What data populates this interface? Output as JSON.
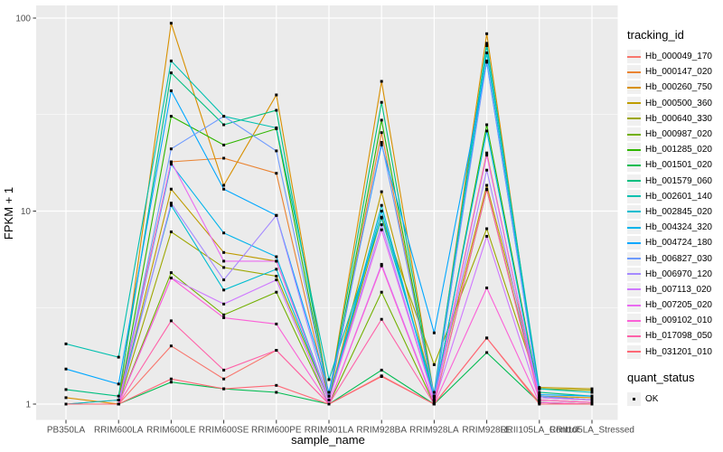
{
  "figure": {
    "xlabel": "sample_name",
    "ylabel": "FPKM + 1"
  },
  "colors": {
    "panel_bg": "#ebebeb",
    "grid": "#ffffff",
    "tick": "#333333",
    "tick_label": "#4d4d4d",
    "point": "#000000",
    "legend_key_bg": "#f0f0f0"
  },
  "chart_data": {
    "type": "line",
    "title": "",
    "xlabel": "sample_name",
    "ylabel": "FPKM + 1",
    "y_scale": "log10",
    "y_ticks": [
      1,
      10,
      100
    ],
    "y_tick_labels": [
      "1",
      "10",
      "100"
    ],
    "y_minor_ticks": [
      3.1623,
      31.623
    ],
    "ylim": [
      0.85,
      117
    ],
    "grid": true,
    "legend_position": "right",
    "legend_title": "tracking_id",
    "quant_legend": {
      "title": "quant_status",
      "items": [
        {
          "label": "OK",
          "marker": "black-square"
        }
      ]
    },
    "point_marker": {
      "shape": "square",
      "color": "#000000"
    },
    "categories": [
      "PB350LA",
      "RRIM600LA",
      "RRIM600LE",
      "RRIM600SE",
      "RRIM600PE",
      "RRIM901LA",
      "RRIM928BA",
      "RRIM928LA",
      "RRIM928LE",
      "RRII105LA_Control",
      "RRII105LA_Stressed"
    ],
    "series": [
      {
        "name": "Hb_000049_170",
        "color": "#F8766D",
        "values": [
          1.0,
          1.0,
          2.0,
          1.35,
          1.9,
          1.0,
          1.4,
          1.0,
          2.2,
          1.02,
          1.0
        ]
      },
      {
        "name": "Hb_000147_020",
        "color": "#EA8331",
        "values": [
          1.0,
          1.05,
          18.0,
          18.8,
          15.7,
          1.05,
          25.5,
          1.05,
          20.0,
          1.05,
          1.02
        ]
      },
      {
        "name": "Hb_000260_750",
        "color": "#D89000",
        "values": [
          1.08,
          1.0,
          94.0,
          13.6,
          40.0,
          1.1,
          47.0,
          1.1,
          83.0,
          1.1,
          1.08
        ]
      },
      {
        "name": "Hb_000500_360",
        "color": "#BE9C00",
        "values": [
          1.0,
          1.0,
          13.0,
          6.1,
          5.5,
          1.05,
          12.6,
          1.1,
          13.6,
          1.22,
          1.2
        ]
      },
      {
        "name": "Hb_000640_330",
        "color": "#9DA700",
        "values": [
          1.0,
          1.0,
          7.8,
          5.1,
          4.6,
          1.05,
          9.3,
          1.6,
          8.1,
          1.2,
          1.18
        ]
      },
      {
        "name": "Hb_000987_020",
        "color": "#72B000",
        "values": [
          1.0,
          1.0,
          4.8,
          2.9,
          3.8,
          1.0,
          3.8,
          1.0,
          12.9,
          1.1,
          1.05
        ]
      },
      {
        "name": "Hb_001285_020",
        "color": "#2FB600",
        "values": [
          1.0,
          1.0,
          31.0,
          22.0,
          26.7,
          1.05,
          29.6,
          1.05,
          28.0,
          1.1,
          1.05
        ]
      },
      {
        "name": "Hb_001501_020",
        "color": "#00BC51",
        "values": [
          1.0,
          1.0,
          1.3,
          1.2,
          1.15,
          1.0,
          1.5,
          1.0,
          1.85,
          1.02,
          1.0
        ]
      },
      {
        "name": "Hb_001579_060",
        "color": "#00BF80",
        "values": [
          1.19,
          1.1,
          52.0,
          28.0,
          33.3,
          1.1,
          36.6,
          1.1,
          74.0,
          1.15,
          1.1
        ]
      },
      {
        "name": "Hb_002601_140",
        "color": "#00C0AF",
        "values": [
          2.05,
          1.75,
          60.0,
          31.0,
          27.0,
          1.34,
          9.2,
          1.15,
          72.0,
          1.2,
          1.15
        ]
      },
      {
        "name": "Hb_002845_020",
        "color": "#00BDD0",
        "values": [
          1.0,
          1.05,
          10.7,
          3.9,
          5.0,
          1.05,
          10.7,
          1.05,
          66.0,
          1.1,
          1.05
        ]
      },
      {
        "name": "Hb_004324_320",
        "color": "#00B4EB",
        "values": [
          1.0,
          1.0,
          17.5,
          7.7,
          5.8,
          1.05,
          10.0,
          1.08,
          26.0,
          1.08,
          1.05
        ]
      },
      {
        "name": "Hb_004724_180",
        "color": "#00A7FF",
        "values": [
          1.52,
          1.27,
          42.0,
          13.0,
          9.5,
          1.15,
          22.0,
          2.34,
          59.0,
          1.12,
          1.1
        ]
      },
      {
        "name": "Hb_006827_030",
        "color": "#6E9BFF",
        "values": [
          1.0,
          1.0,
          21.0,
          31.0,
          20.5,
          1.1,
          22.7,
          1.1,
          60.0,
          1.1,
          1.05
        ]
      },
      {
        "name": "Hb_006970_120",
        "color": "#A58AFF",
        "values": [
          1.0,
          1.0,
          11.0,
          4.4,
          9.5,
          1.05,
          8.5,
          1.05,
          16.3,
          1.05,
          1.02
        ]
      },
      {
        "name": "Hb_007113_020",
        "color": "#CF78FF",
        "values": [
          1.0,
          1.0,
          4.5,
          3.3,
          4.4,
          1.0,
          5.3,
          1.02,
          7.4,
          1.05,
          1.02
        ]
      },
      {
        "name": "Hb_007205_020",
        "color": "#E96BF1",
        "values": [
          1.0,
          1.0,
          18.0,
          5.5,
          5.5,
          1.05,
          8.0,
          1.05,
          19.5,
          1.08,
          1.05
        ]
      },
      {
        "name": "Hb_009102_010",
        "color": "#FB61D7",
        "values": [
          1.0,
          1.0,
          4.5,
          2.8,
          2.6,
          1.0,
          5.2,
          1.0,
          4.0,
          1.02,
          1.0
        ]
      },
      {
        "name": "Hb_017098_050",
        "color": "#FF62A9",
        "values": [
          1.0,
          1.0,
          2.7,
          1.5,
          1.9,
          1.0,
          2.75,
          1.0,
          13.0,
          1.05,
          1.02
        ]
      },
      {
        "name": "Hb_031201_010",
        "color": "#FF6876",
        "values": [
          1.0,
          1.0,
          1.35,
          1.2,
          1.25,
          1.0,
          1.39,
          1.0,
          2.2,
          1.0,
          1.0
        ]
      }
    ]
  }
}
